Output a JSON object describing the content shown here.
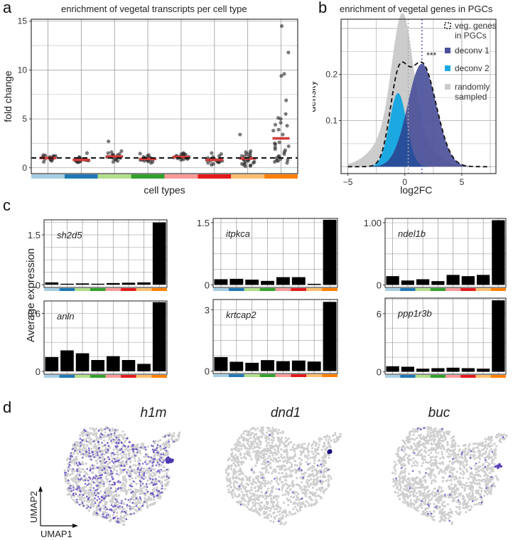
{
  "panels": {
    "a": {
      "letter": "a"
    },
    "b": {
      "letter": "b"
    },
    "c": {
      "letter": "c",
      "ylabel": "Average expression"
    },
    "d": {
      "letter": "d",
      "axis_x": "UMAP1",
      "axis_y": "UMAP2"
    }
  },
  "cell_type_colors": [
    "#a6cee3",
    "#1f78b4",
    "#b2df8a",
    "#33a02c",
    "#fb9a99",
    "#e31a1c",
    "#fdbf6f",
    "#ff7f00"
  ],
  "chart_data": [
    {
      "id": "a",
      "type": "scatter",
      "title": "enrichment of vegetal transcripts per cell type",
      "xlabel": "cell types",
      "ylabel": "fold change",
      "ylim": [
        -0.6,
        15.2
      ],
      "yticks": [
        0,
        5,
        10,
        15
      ],
      "reference_line": 1,
      "grid": true,
      "categories": [
        "1",
        "2",
        "3",
        "4",
        "5",
        "6",
        "7",
        "8"
      ],
      "medians": [
        1.0,
        0.8,
        1.15,
        0.9,
        1.1,
        0.8,
        0.95,
        3.0
      ],
      "points": [
        [
          1.0,
          0.9,
          1.1,
          1.2,
          0.8,
          0.95,
          1.05,
          1.15,
          0.85,
          1.0,
          0.7,
          1.25,
          0.9,
          1.1,
          1.0,
          0.6,
          1.3,
          0.95,
          1.05,
          1.2
        ],
        [
          0.8,
          0.7,
          0.9,
          1.0,
          0.6,
          0.85,
          0.75,
          1.5,
          0.95,
          0.65,
          0.8,
          0.9,
          0.7,
          0.55,
          1.1,
          0.85,
          0.75,
          0.9,
          0.8,
          0.6
        ],
        [
          1.2,
          1.0,
          1.4,
          1.6,
          0.9,
          1.1,
          1.3,
          2.7,
          0.8,
          1.5,
          1.05,
          1.25,
          0.7,
          1.15,
          1.35,
          1.0,
          0.6,
          1.7,
          1.2,
          1.1
        ],
        [
          0.9,
          0.8,
          1.0,
          1.45,
          0.7,
          0.95,
          0.85,
          1.1,
          0.6,
          1.2,
          0.75,
          0.9,
          1.0,
          0.5,
          0.8,
          1.3,
          0.9,
          0.65,
          0.85,
          1.0
        ],
        [
          1.1,
          1.0,
          1.2,
          1.4,
          0.9,
          1.3,
          1.05,
          1.5,
          0.85,
          1.15,
          1.0,
          1.25,
          0.95,
          1.35,
          1.1,
          0.8,
          1.2,
          1.0,
          1.45,
          1.05
        ],
        [
          0.8,
          0.6,
          1.0,
          1.4,
          0.5,
          0.7,
          0.9,
          1.2,
          0.3,
          0.75,
          0.85,
          0.6,
          1.1,
          0.4,
          0.8,
          1.5,
          0.65,
          0.95,
          0.55,
          0.7
        ],
        [
          0.9,
          0.5,
          1.2,
          3.4,
          0.3,
          0.7,
          1.5,
          1.0,
          0.2,
          0.8,
          1.3,
          0.6,
          1.7,
          0.4,
          1.1,
          0.9,
          0.25,
          1.4,
          0.65,
          1.0,
          0.15,
          1.6,
          0.85,
          0.45,
          1.2
        ],
        [
          14.5,
          11.8,
          9.6,
          9.4,
          6.9,
          5.5,
          5.1,
          5.0,
          4.6,
          4.4,
          4.3,
          3.9,
          3.8,
          3.4,
          2.6,
          2.5,
          2.4,
          2.1,
          1.9,
          1.8,
          1.6,
          1.4,
          1.2,
          1.0,
          0.9,
          0.8,
          0.7,
          0.6,
          0.5,
          1.1,
          2.2,
          0.75
        ]
      ]
    },
    {
      "id": "b",
      "type": "area",
      "title": "enrichment of vegetal genes in PGCs",
      "xlabel": "log2FC",
      "ylabel": "density",
      "xlim": [
        -5.6,
        8.0
      ],
      "ylim": [
        -0.015,
        0.32
      ],
      "xticks": [
        -5,
        0,
        5
      ],
      "yticks": [
        0.1,
        0.2
      ],
      "grid": true,
      "legend_position": "top-right",
      "annotation": "***",
      "vlines": [
        {
          "x": 0.3,
          "color": "#aaaaaa"
        },
        {
          "x": 1.5,
          "color": "#5555bb"
        }
      ],
      "series": [
        {
          "name": "randomly sampled",
          "color": "#cccccc",
          "components": [
            {
              "mu": -0.2,
              "sigma": 0.9,
              "w": 0.55
            },
            {
              "mu": -0.3,
              "sigma": 2.0,
              "w": 0.45
            }
          ]
        },
        {
          "name": "deconv 2",
          "color": "#1ca8e0",
          "components": [
            {
              "mu": -0.6,
              "sigma": 0.75,
              "w": 0.3
            }
          ]
        },
        {
          "name": "deconv 1",
          "color": "#4b5199",
          "components": [
            {
              "mu": 1.5,
              "sigma": 1.25,
              "w": 0.7
            }
          ]
        },
        {
          "name": "veg. genes in PGCs",
          "style": "dashed",
          "color": "#111111"
        }
      ],
      "legend": [
        "veg. genes in PGCs",
        "deconv 1",
        "deconv 2",
        "randomly sampled"
      ]
    },
    {
      "id": "c1",
      "type": "bar",
      "gene": "sh2d5",
      "ylim": [
        -0.08,
        1.95
      ],
      "yticks": [
        0,
        1.5
      ],
      "ytick_labels": [
        "0",
        "1.5"
      ],
      "values": [
        0.05,
        0,
        0.02,
        0,
        0.03,
        0.04,
        0.05,
        1.85
      ]
    },
    {
      "id": "c2",
      "type": "bar",
      "gene": "itpkca",
      "ylim": [
        -0.06,
        1.6
      ],
      "yticks": [
        0,
        1.5
      ],
      "ytick_labels": [
        "0",
        "1.5"
      ],
      "values": [
        0.12,
        0.13,
        0.11,
        0.08,
        0.17,
        0.17,
        0.01,
        1.55
      ]
    },
    {
      "id": "c3",
      "type": "bar",
      "gene": "ndel1b",
      "ylim": [
        -0.04,
        1.07
      ],
      "yticks": [
        0,
        1.0
      ],
      "ytick_labels": [
        "0",
        "1.00"
      ],
      "values": [
        0.13,
        0.06,
        0.08,
        0.05,
        0.15,
        0.13,
        0.15,
        1.03
      ]
    },
    {
      "id": "c4",
      "type": "bar",
      "gene": "anln",
      "ylim": [
        -0.03,
        0.73
      ],
      "yticks": [
        0,
        0.6
      ],
      "ytick_labels": [
        "0",
        "0.6"
      ],
      "values": [
        0.14,
        0.21,
        0.18,
        0.11,
        0.15,
        0.11,
        0.07,
        0.71
      ]
    },
    {
      "id": "c5",
      "type": "bar",
      "gene": "krtcap2",
      "ylim": [
        -0.12,
        3.5
      ],
      "yticks": [
        0,
        3
      ],
      "ytick_labels": [
        "0",
        "3"
      ],
      "values": [
        0.65,
        0.42,
        0.37,
        0.5,
        0.45,
        0.48,
        0.43,
        3.35
      ]
    },
    {
      "id": "c6",
      "type": "bar",
      "gene": "ppp1r3b",
      "ylim": [
        -0.25,
        7.6
      ],
      "yticks": [
        0,
        6
      ],
      "ytick_labels": [
        "0",
        "6"
      ],
      "values": [
        0.5,
        0.45,
        0.25,
        0.3,
        0.35,
        0.3,
        0.25,
        7.3
      ]
    }
  ],
  "umaps": [
    {
      "gene": "h1m",
      "expression": "broad"
    },
    {
      "gene": "dnd1",
      "expression": "sparse-cluster"
    },
    {
      "gene": "buc",
      "expression": "sparse"
    }
  ],
  "umap_colors": {
    "background": "#cfcfcf",
    "expressed": "#6a4fc4",
    "high": "#1a0f80"
  }
}
